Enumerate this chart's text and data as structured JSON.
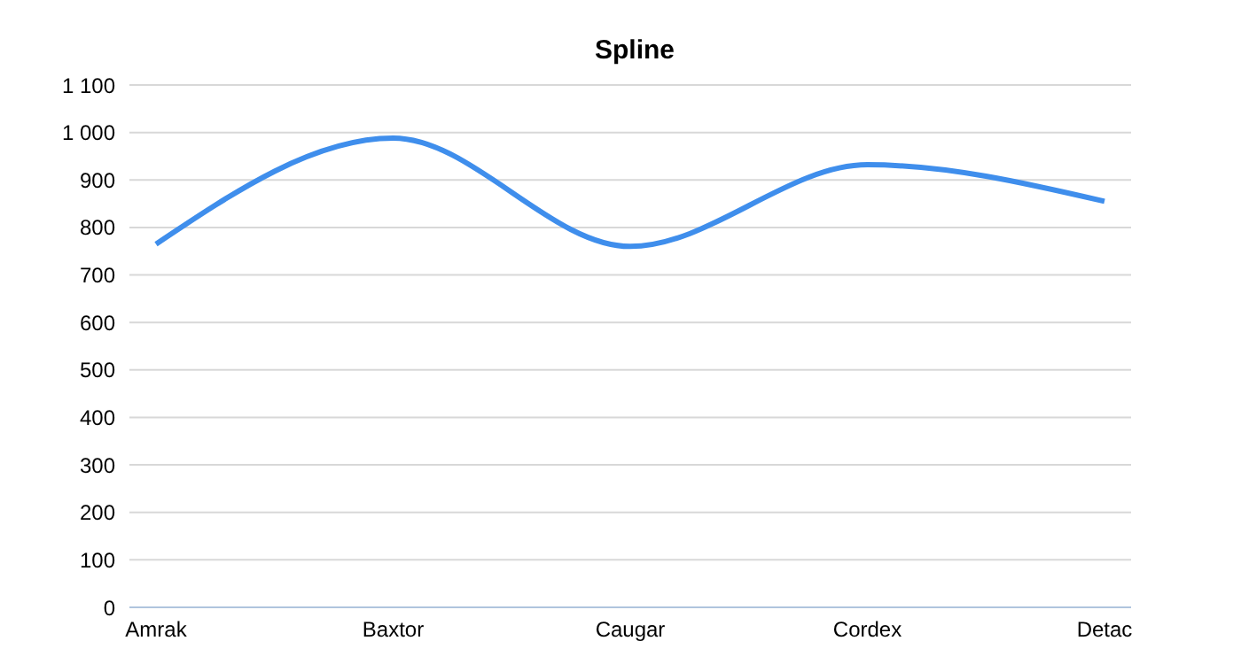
{
  "chart_data": {
    "type": "line",
    "title": "Spline",
    "categories": [
      "Amrak",
      "Baxtor",
      "Caugar",
      "Cordex",
      "Detac"
    ],
    "series": [
      {
        "color": "#3f8eec",
        "values": [
          765,
          988,
          760,
          932,
          855
        ]
      }
    ],
    "ylim": [
      0,
      1100
    ],
    "yticks": [
      0,
      100,
      200,
      300,
      400,
      500,
      600,
      700,
      800,
      900,
      {
        "value": 1000,
        "label": "1 000"
      },
      {
        "value": 1100,
        "label": "1 100"
      }
    ],
    "grid": "y",
    "legend": false,
    "marker": "none",
    "line_style": "solid"
  }
}
